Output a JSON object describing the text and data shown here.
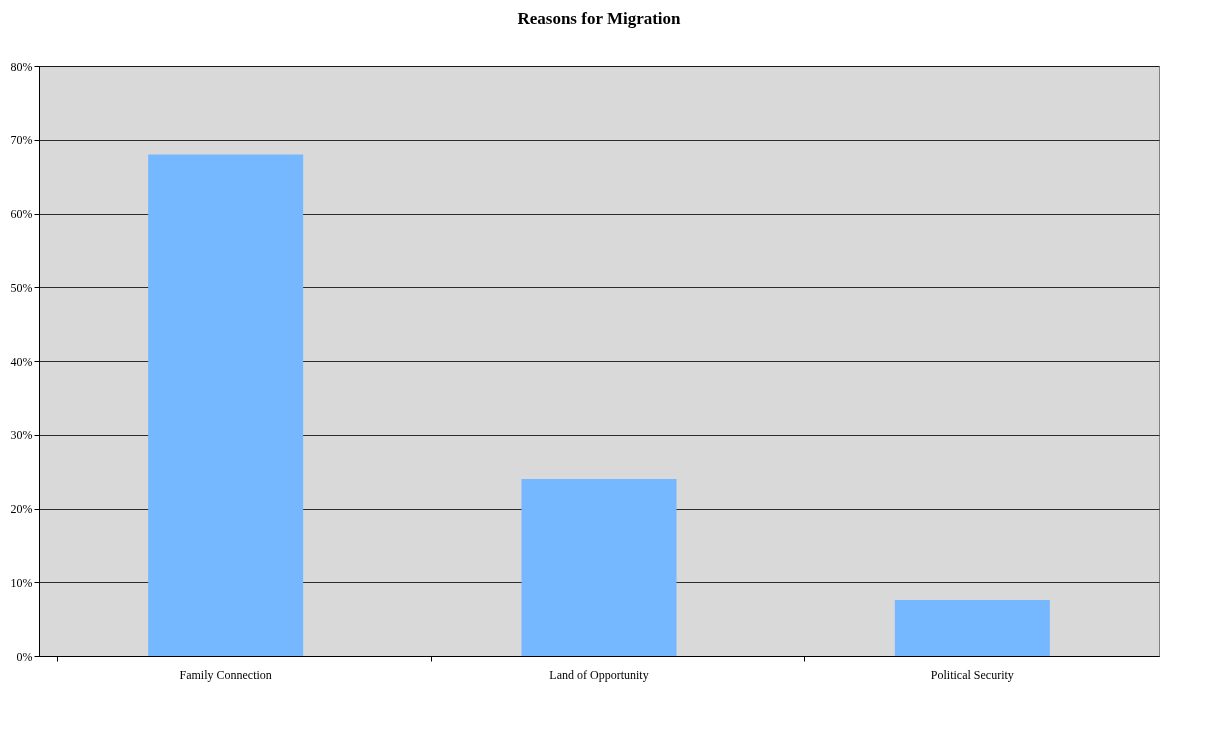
{
  "chart_data": {
    "type": "bar",
    "title": "Reasons for Migration",
    "categories": [
      "Family Connection",
      "Land of Opportunity",
      "Political Security"
    ],
    "values": [
      68,
      24,
      7.6
    ],
    "color": "#75b8ff",
    "ylim": [
      0,
      80
    ],
    "yticks": [
      {
        "value": 0,
        "label": "0%"
      },
      {
        "value": 10,
        "label": "10%"
      },
      {
        "value": 20,
        "label": "20%"
      },
      {
        "value": 30,
        "label": "30%"
      },
      {
        "value": 40,
        "label": "40%"
      },
      {
        "value": 50,
        "label": "50%"
      },
      {
        "value": 60,
        "label": "60%"
      },
      {
        "value": 70,
        "label": "70%"
      },
      {
        "value": 80,
        "label": "80%"
      }
    ],
    "grid": "y"
  }
}
